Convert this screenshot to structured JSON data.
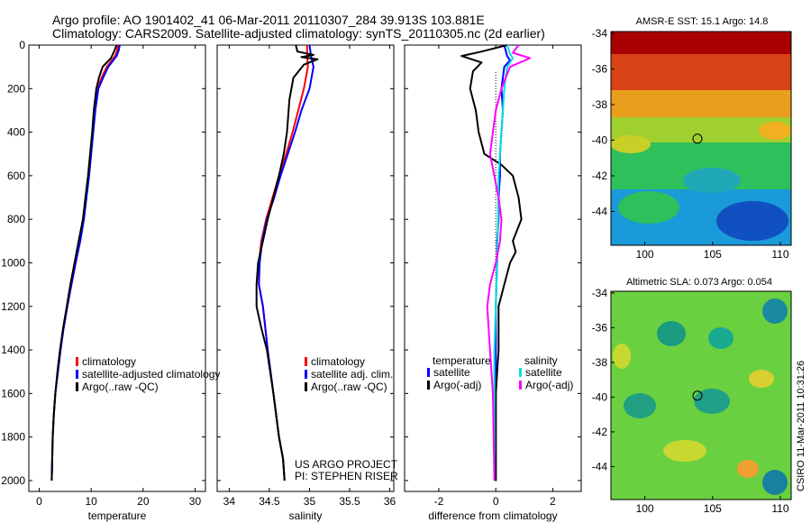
{
  "header": {
    "line1": "Argo profile: AO 1901402_41 06-Mar-2011 20110307_284 39.913S 103.881E",
    "line2": "Climatology: CARS2009. Satellite-adjusted climatology: synTS_20110305.nc (2d earlier)"
  },
  "attribution": {
    "line1": "US ARGO PROJECT",
    "line2": "PI: STEPHEN RISER"
  },
  "timestamp": "CSIRO 11-Mar-2011 10:31:26",
  "colors": {
    "clim": "#ff0000",
    "sat": "#0000ff",
    "argo": "#000000",
    "sal_sat": "#00e0e0",
    "sal_argo": "#ff00ff"
  },
  "chart_data": [
    {
      "type": "line",
      "id": "temperature",
      "xlabel": "temperature",
      "ylabel": "",
      "xlim": [
        -2,
        32
      ],
      "ylim": [
        2050,
        0
      ],
      "xticks": [
        0,
        10,
        20,
        30
      ],
      "yticks": [
        0,
        200,
        400,
        600,
        800,
        1000,
        1200,
        1400,
        1600,
        1800,
        2000
      ],
      "series": [
        {
          "name": "climatology",
          "color": "#ff0000",
          "x": [
            15.2,
            15.0,
            14.6,
            13.0,
            12.0,
            11.2,
            10.6,
            10.3,
            9.9,
            9.5,
            9.0,
            8.5,
            7.8,
            7.0,
            6.2,
            5.4,
            4.7,
            4.1,
            3.6,
            3.1,
            2.8,
            2.6,
            2.4
          ],
          "y": [
            0,
            25,
            50,
            100,
            150,
            200,
            300,
            400,
            500,
            600,
            700,
            800,
            900,
            1000,
            1100,
            1200,
            1300,
            1400,
            1500,
            1600,
            1700,
            1800,
            2000
          ]
        },
        {
          "name": "satellite-adjusted climatology",
          "color": "#0000ff",
          "x": [
            15.5,
            15.3,
            14.9,
            13.3,
            12.3,
            11.4,
            10.8,
            10.4,
            10.0,
            9.6,
            9.1,
            8.6,
            7.9,
            7.0,
            6.2,
            5.4,
            4.7,
            4.1,
            3.6,
            3.1,
            2.8,
            2.6,
            2.4
          ],
          "y": [
            0,
            25,
            50,
            100,
            150,
            200,
            300,
            400,
            500,
            600,
            700,
            800,
            900,
            1000,
            1100,
            1200,
            1300,
            1400,
            1500,
            1600,
            1700,
            1800,
            2000
          ]
        },
        {
          "name": "Argo(..raw -QC)",
          "color": "#000000",
          "x": [
            14.9,
            14.5,
            13.8,
            12.2,
            11.5,
            11.0,
            10.5,
            10.2,
            9.8,
            9.4,
            8.9,
            8.4,
            7.6,
            6.8,
            6.0,
            5.3,
            4.6,
            4.0,
            3.5,
            3.1,
            2.8,
            2.6,
            2.4
          ],
          "y": [
            0,
            25,
            60,
            100,
            150,
            200,
            300,
            400,
            500,
            600,
            700,
            800,
            900,
            1000,
            1100,
            1200,
            1300,
            1400,
            1500,
            1600,
            1700,
            1800,
            2000
          ]
        }
      ],
      "legend": [
        "climatology",
        "satellite-adjusted climatology",
        "Argo(..raw -QC)"
      ]
    },
    {
      "type": "line",
      "id": "salinity",
      "xlabel": "salinity",
      "ylabel": "",
      "xlim": [
        33.85,
        36.05
      ],
      "ylim": [
        2050,
        0
      ],
      "xticks": [
        34,
        34.5,
        35,
        35.5,
        36
      ],
      "yticks": [
        0,
        200,
        400,
        600,
        800,
        1000,
        1200,
        1400,
        1600,
        1800,
        2000
      ],
      "series": [
        {
          "name": "climatology",
          "color": "#ff0000",
          "x": [
            34.97,
            34.97,
            34.98,
            34.93,
            34.86,
            34.79,
            34.71,
            34.62,
            34.54,
            34.46,
            34.4,
            34.37,
            34.37,
            34.42,
            34.48,
            34.55,
            34.62,
            34.67,
            34.69
          ],
          "y": [
            0,
            50,
            100,
            200,
            300,
            400,
            500,
            600,
            700,
            800,
            900,
            1000,
            1100,
            1200,
            1400,
            1600,
            1800,
            1900,
            2000
          ]
        },
        {
          "name": "satellite adj. clim.",
          "color": "#0000ff",
          "x": [
            35.0,
            35.02,
            35.05,
            35.0,
            34.9,
            34.82,
            34.73,
            34.64,
            34.56,
            34.47,
            34.41,
            34.38,
            34.37,
            34.42,
            34.48,
            34.55,
            34.62,
            34.67,
            34.69
          ],
          "y": [
            0,
            50,
            100,
            200,
            300,
            400,
            500,
            600,
            700,
            800,
            900,
            1000,
            1100,
            1200,
            1400,
            1600,
            1800,
            1900,
            2000
          ]
        },
        {
          "name": "Argo(..raw -QC)",
          "color": "#000000",
          "x": [
            34.83,
            34.85,
            35.05,
            34.9,
            35.1,
            34.93,
            34.8,
            34.75,
            34.72,
            34.68,
            34.62,
            34.55,
            34.48,
            34.42,
            34.36,
            34.34,
            34.34,
            34.4,
            34.47,
            34.55,
            34.62,
            34.67,
            34.69
          ],
          "y": [
            0,
            30,
            45,
            55,
            65,
            90,
            150,
            250,
            400,
            500,
            600,
            700,
            800,
            900,
            1000,
            1100,
            1200,
            1300,
            1400,
            1600,
            1800,
            1900,
            2000
          ]
        }
      ],
      "legend": [
        "climatology",
        "satellite adj. clim.",
        "Argo(..raw -QC)"
      ]
    },
    {
      "type": "line",
      "id": "difference",
      "xlabel": "difference from climatology",
      "ylabel": "",
      "xlim": [
        -3.2,
        3.0
      ],
      "ylim": [
        2050,
        0
      ],
      "xticks": [
        -2,
        0,
        2
      ],
      "yticks": [
        0,
        200,
        400,
        600,
        800,
        1000,
        1200,
        1400,
        1600,
        1800,
        2000
      ],
      "series": [
        {
          "name": "temperature satellite",
          "color": "#0000ff",
          "x": [
            0.3,
            0.4,
            0.5,
            0.3,
            0.2,
            0.25,
            0.2,
            0.15,
            0.15,
            0.1,
            0.1,
            0.05,
            0.05,
            0.0,
            0.0,
            0.0,
            0.0,
            0.0
          ],
          "y": [
            0,
            50,
            70,
            100,
            200,
            300,
            400,
            500,
            600,
            700,
            800,
            900,
            1000,
            1200,
            1400,
            1600,
            1800,
            2000
          ]
        },
        {
          "name": "temperature Argo(-adj)",
          "color": "#000000",
          "x": [
            0.4,
            -0.5,
            -1.2,
            -0.5,
            -0.8,
            -0.9,
            -0.7,
            -0.6,
            -0.4,
            0.2,
            0.6,
            0.8,
            0.9,
            0.6,
            0.7,
            0.5,
            0.3,
            0.1,
            0.1,
            0.0,
            0.0,
            0.0
          ],
          "y": [
            0,
            30,
            50,
            80,
            120,
            200,
            300,
            400,
            500,
            550,
            600,
            700,
            800,
            900,
            950,
            1000,
            1100,
            1200,
            1400,
            1600,
            1800,
            2000
          ]
        },
        {
          "name": "salinity satellite",
          "color": "#00e0e0",
          "x": [
            0.4,
            0.5,
            0.6,
            0.4,
            0.3,
            0.25,
            0.2,
            0.15,
            0.1,
            0.08,
            0.05,
            0.0,
            -0.05,
            -0.05,
            -0.05
          ],
          "y": [
            0,
            40,
            60,
            100,
            200,
            300,
            400,
            500,
            600,
            800,
            1000,
            1200,
            1400,
            1600,
            2000
          ]
        },
        {
          "name": "salinity Argo(-adj)",
          "color": "#ff00ff",
          "x": [
            0.8,
            0.6,
            1.2,
            0.5,
            0.2,
            0.0,
            -0.1,
            -0.2,
            -0.05,
            0.1,
            0.2,
            0.15,
            0.0,
            -0.2,
            -0.3,
            -0.2,
            -0.1,
            -0.05
          ],
          "y": [
            0,
            35,
            60,
            100,
            200,
            300,
            400,
            500,
            600,
            700,
            800,
            900,
            1000,
            1100,
            1200,
            1400,
            1600,
            2000
          ]
        }
      ],
      "legend_titles": [
        "temperature",
        "salinity"
      ],
      "legend": [
        "satellite",
        "Argo(-adj)",
        "satellite",
        "Argo(-adj)"
      ]
    },
    {
      "type": "heatmap",
      "id": "sst_map",
      "title": "AMSR-E SST: 15.1  Argo: 14.8",
      "xlim": [
        97.5,
        110.8
      ],
      "ylim": [
        -45.9,
        -33.9
      ],
      "xticks": [
        100,
        105,
        110
      ],
      "yticks": [
        -34,
        -36,
        -38,
        -40,
        -42,
        -44
      ],
      "marker": {
        "lon": 103.881,
        "lat": -39.913
      }
    },
    {
      "type": "heatmap",
      "id": "sla_map",
      "title": "Altimetric SLA: 0.073  Argo: 0.054",
      "xlim": [
        97.5,
        110.8
      ],
      "ylim": [
        -45.9,
        -33.9
      ],
      "xticks": [
        100,
        105,
        110
      ],
      "yticks": [
        -34,
        -36,
        -38,
        -40,
        -42,
        -44
      ],
      "marker": {
        "lon": 103.881,
        "lat": -39.913
      }
    }
  ]
}
